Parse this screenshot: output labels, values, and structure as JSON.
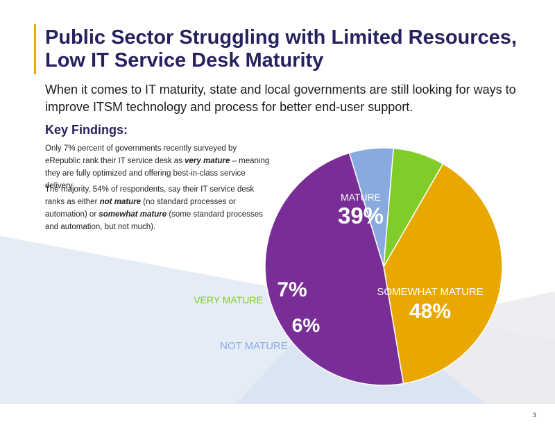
{
  "header": {
    "title_line1": "Public Sector Struggling with Limited Resources,",
    "title_line2": "Low IT Service Desk Maturity",
    "subtitle": "When it comes to IT maturity, state and local governments are still looking for ways to improve ITSM technology and process for better end-user support."
  },
  "findings": {
    "heading": "Key Findings:",
    "p1_pre": "Only 7% percent of governments recently surveyed by eRepublic rank their IT service desk as ",
    "p1_em": "very mature",
    "p1_post": " – meaning they are fully optimized and offering best-in-class service delivery.",
    "p2_pre": "The majority, 54% of respondents, say their IT service desk ranks as either ",
    "p2_em1": "not mature",
    "p2_mid": " (no standard processes or automation) or ",
    "p2_em2": "somewhat mature",
    "p2_post": " (some standard processes and automation, but not much)."
  },
  "page": {
    "number": "3"
  },
  "colors": {
    "mature": "#e8a800",
    "somewhat_mature": "#782e96",
    "not_mature": "#88aadf",
    "very_mature": "#80cc28",
    "title": "#26215f",
    "accent": "#e8a800"
  },
  "chart_data": {
    "type": "pie",
    "slices": [
      {
        "label": "MATURE",
        "value": 39,
        "display": "39%",
        "color": "#e8a800"
      },
      {
        "label": "SOMEWHAT MATURE",
        "value": 48,
        "display": "48%",
        "color": "#782e96"
      },
      {
        "label": "NOT MATURE",
        "value": 6,
        "display": "6%",
        "color": "#88aadf"
      },
      {
        "label": "VERY MATURE",
        "value": 7,
        "display": "7%",
        "color": "#80cc28"
      }
    ]
  }
}
